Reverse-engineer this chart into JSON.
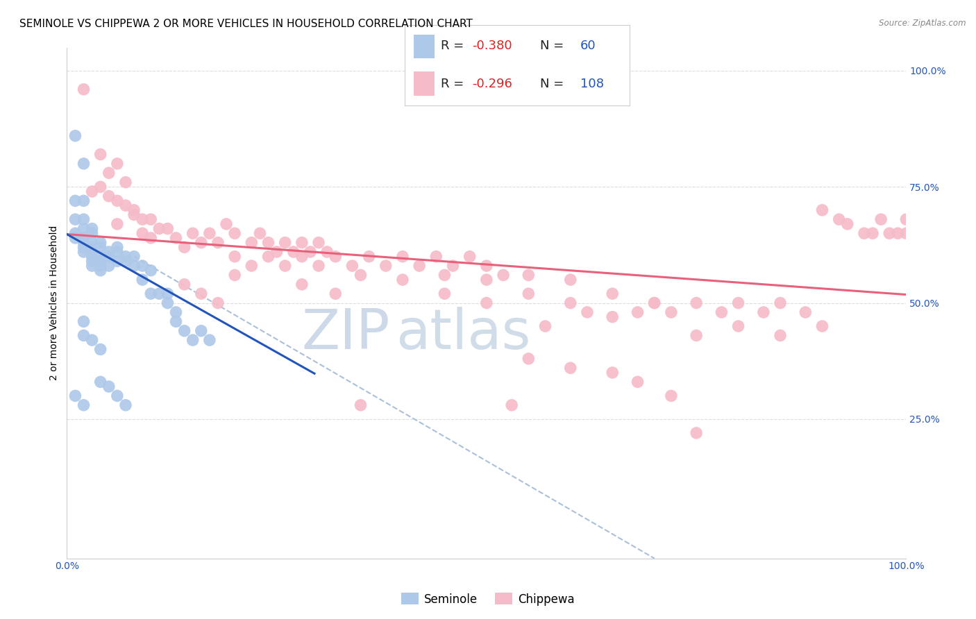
{
  "title": "SEMINOLE VS CHIPPEWA 2 OR MORE VEHICLES IN HOUSEHOLD CORRELATION CHART",
  "source": "Source: ZipAtlas.com",
  "ylabel": "2 or more Vehicles in Household",
  "xlim": [
    0.0,
    1.0
  ],
  "ylim": [
    -0.05,
    1.05
  ],
  "ytick_labels": [
    "25.0%",
    "50.0%",
    "75.0%",
    "100.0%"
  ],
  "ytick_values": [
    0.25,
    0.5,
    0.75,
    1.0
  ],
  "xtick_values": [
    0.0,
    1.0
  ],
  "xtick_labels": [
    "0.0%",
    "100.0%"
  ],
  "seminole_R": "-0.380",
  "seminole_N": "60",
  "chippewa_R": "-0.296",
  "chippewa_N": "108",
  "seminole_color": "#adc8e8",
  "chippewa_color": "#f5bbc8",
  "seminole_line_color": "#2255bb",
  "chippewa_line_color": "#e8607a",
  "dashed_line_color": "#aac0d8",
  "background_color": "#ffffff",
  "watermark_zip": "ZIP",
  "watermark_atlas": "atlas",
  "watermark_color": "#cdd8e8",
  "title_fontsize": 11,
  "label_fontsize": 10,
  "tick_fontsize": 10,
  "legend_text_color": "#222222",
  "legend_red_color": "#dd2222",
  "legend_blue_color": "#2255bb",
  "seminole_scatter": [
    [
      0.01,
      0.86
    ],
    [
      0.02,
      0.8
    ],
    [
      0.01,
      0.72
    ],
    [
      0.02,
      0.72
    ],
    [
      0.01,
      0.68
    ],
    [
      0.02,
      0.68
    ],
    [
      0.01,
      0.65
    ],
    [
      0.01,
      0.64
    ],
    [
      0.02,
      0.63
    ],
    [
      0.02,
      0.62
    ],
    [
      0.02,
      0.66
    ],
    [
      0.03,
      0.66
    ],
    [
      0.02,
      0.64
    ],
    [
      0.03,
      0.65
    ],
    [
      0.03,
      0.63
    ],
    [
      0.03,
      0.62
    ],
    [
      0.02,
      0.61
    ],
    [
      0.03,
      0.61
    ],
    [
      0.03,
      0.6
    ],
    [
      0.04,
      0.63
    ],
    [
      0.03,
      0.59
    ],
    [
      0.04,
      0.62
    ],
    [
      0.03,
      0.58
    ],
    [
      0.04,
      0.6
    ],
    [
      0.04,
      0.59
    ],
    [
      0.04,
      0.58
    ],
    [
      0.04,
      0.57
    ],
    [
      0.05,
      0.61
    ],
    [
      0.05,
      0.6
    ],
    [
      0.05,
      0.58
    ],
    [
      0.06,
      0.62
    ],
    [
      0.06,
      0.61
    ],
    [
      0.06,
      0.59
    ],
    [
      0.07,
      0.6
    ],
    [
      0.07,
      0.59
    ],
    [
      0.08,
      0.6
    ],
    [
      0.08,
      0.58
    ],
    [
      0.09,
      0.58
    ],
    [
      0.09,
      0.55
    ],
    [
      0.1,
      0.57
    ],
    [
      0.1,
      0.52
    ],
    [
      0.11,
      0.52
    ],
    [
      0.12,
      0.52
    ],
    [
      0.12,
      0.5
    ],
    [
      0.13,
      0.48
    ],
    [
      0.13,
      0.46
    ],
    [
      0.14,
      0.44
    ],
    [
      0.15,
      0.42
    ],
    [
      0.16,
      0.44
    ],
    [
      0.17,
      0.42
    ],
    [
      0.04,
      0.33
    ],
    [
      0.05,
      0.32
    ],
    [
      0.06,
      0.3
    ],
    [
      0.07,
      0.28
    ],
    [
      0.03,
      0.42
    ],
    [
      0.04,
      0.4
    ],
    [
      0.02,
      0.46
    ],
    [
      0.02,
      0.43
    ],
    [
      0.01,
      0.3
    ],
    [
      0.02,
      0.28
    ]
  ],
  "chippewa_scatter": [
    [
      0.02,
      0.96
    ],
    [
      0.04,
      0.82
    ],
    [
      0.06,
      0.8
    ],
    [
      0.05,
      0.78
    ],
    [
      0.07,
      0.76
    ],
    [
      0.03,
      0.74
    ],
    [
      0.06,
      0.72
    ],
    [
      0.08,
      0.7
    ],
    [
      0.09,
      0.68
    ],
    [
      0.04,
      0.75
    ],
    [
      0.05,
      0.73
    ],
    [
      0.07,
      0.71
    ],
    [
      0.08,
      0.69
    ],
    [
      0.1,
      0.68
    ],
    [
      0.11,
      0.66
    ],
    [
      0.06,
      0.67
    ],
    [
      0.09,
      0.65
    ],
    [
      0.1,
      0.64
    ],
    [
      0.12,
      0.66
    ],
    [
      0.13,
      0.64
    ],
    [
      0.14,
      0.62
    ],
    [
      0.15,
      0.65
    ],
    [
      0.16,
      0.63
    ],
    [
      0.17,
      0.65
    ],
    [
      0.18,
      0.63
    ],
    [
      0.19,
      0.67
    ],
    [
      0.2,
      0.65
    ],
    [
      0.22,
      0.63
    ],
    [
      0.23,
      0.65
    ],
    [
      0.24,
      0.63
    ],
    [
      0.25,
      0.61
    ],
    [
      0.26,
      0.63
    ],
    [
      0.27,
      0.61
    ],
    [
      0.28,
      0.63
    ],
    [
      0.29,
      0.61
    ],
    [
      0.3,
      0.63
    ],
    [
      0.31,
      0.61
    ],
    [
      0.2,
      0.6
    ],
    [
      0.22,
      0.58
    ],
    [
      0.24,
      0.6
    ],
    [
      0.26,
      0.58
    ],
    [
      0.28,
      0.6
    ],
    [
      0.3,
      0.58
    ],
    [
      0.32,
      0.6
    ],
    [
      0.34,
      0.58
    ],
    [
      0.36,
      0.6
    ],
    [
      0.38,
      0.58
    ],
    [
      0.4,
      0.6
    ],
    [
      0.42,
      0.58
    ],
    [
      0.44,
      0.6
    ],
    [
      0.46,
      0.58
    ],
    [
      0.48,
      0.6
    ],
    [
      0.5,
      0.58
    ],
    [
      0.35,
      0.56
    ],
    [
      0.4,
      0.55
    ],
    [
      0.45,
      0.56
    ],
    [
      0.5,
      0.55
    ],
    [
      0.55,
      0.56
    ],
    [
      0.6,
      0.55
    ],
    [
      0.45,
      0.52
    ],
    [
      0.5,
      0.5
    ],
    [
      0.55,
      0.52
    ],
    [
      0.6,
      0.5
    ],
    [
      0.65,
      0.52
    ],
    [
      0.7,
      0.5
    ],
    [
      0.53,
      0.28
    ],
    [
      0.57,
      0.45
    ],
    [
      0.62,
      0.48
    ],
    [
      0.65,
      0.47
    ],
    [
      0.68,
      0.48
    ],
    [
      0.7,
      0.5
    ],
    [
      0.72,
      0.48
    ],
    [
      0.75,
      0.5
    ],
    [
      0.78,
      0.48
    ],
    [
      0.8,
      0.5
    ],
    [
      0.83,
      0.48
    ],
    [
      0.85,
      0.5
    ],
    [
      0.88,
      0.48
    ],
    [
      0.9,
      0.7
    ],
    [
      0.92,
      0.68
    ],
    [
      0.93,
      0.67
    ],
    [
      0.95,
      0.65
    ],
    [
      0.96,
      0.65
    ],
    [
      0.97,
      0.68
    ],
    [
      0.98,
      0.65
    ],
    [
      0.99,
      0.65
    ],
    [
      1.0,
      0.68
    ],
    [
      1.0,
      0.65
    ],
    [
      0.75,
      0.43
    ],
    [
      0.8,
      0.45
    ],
    [
      0.85,
      0.43
    ],
    [
      0.9,
      0.45
    ],
    [
      0.55,
      0.38
    ],
    [
      0.6,
      0.36
    ],
    [
      0.65,
      0.35
    ],
    [
      0.68,
      0.33
    ],
    [
      0.72,
      0.3
    ],
    [
      0.75,
      0.22
    ],
    [
      0.52,
      0.56
    ],
    [
      0.35,
      0.28
    ],
    [
      0.28,
      0.54
    ],
    [
      0.32,
      0.52
    ],
    [
      0.14,
      0.54
    ],
    [
      0.16,
      0.52
    ],
    [
      0.18,
      0.5
    ],
    [
      0.2,
      0.56
    ]
  ],
  "seminole_line_x": [
    0.0,
    0.295
  ],
  "seminole_line_y": [
    0.648,
    0.348
  ],
  "chippewa_line_x": [
    0.0,
    1.0
  ],
  "chippewa_line_y": [
    0.648,
    0.518
  ],
  "dashed_line_x": [
    0.08,
    0.7
  ],
  "dashed_line_y": [
    0.6,
    -0.05
  ]
}
